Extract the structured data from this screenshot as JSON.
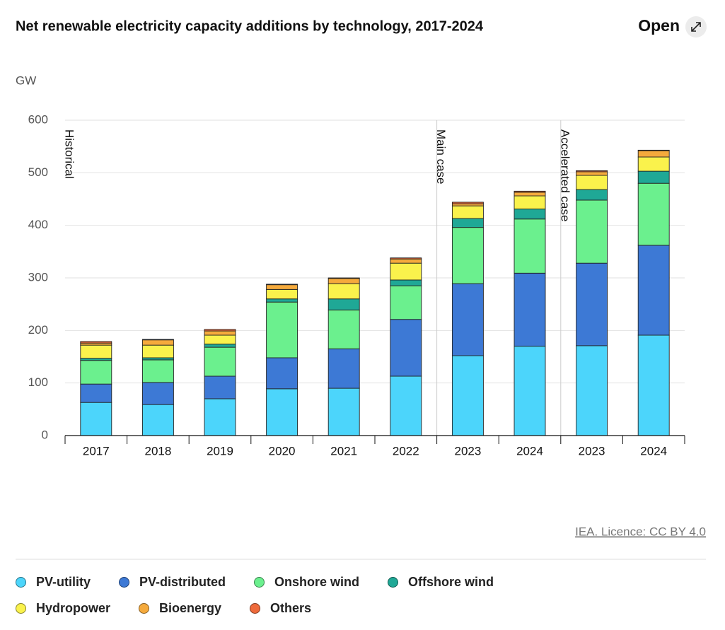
{
  "chart_data": {
    "type": "stacked-bar",
    "title": "Net renewable electricity capacity additions by technology, 2017-2024",
    "y_label": "GW",
    "open_button": "Open",
    "source": "IEA. Licence: CC BY 4.0",
    "annotations": [
      "Historical",
      "Main case",
      "Accelerated case"
    ],
    "categories": [
      "2017",
      "2018",
      "2019",
      "2020",
      "2021",
      "2022",
      "2023",
      "2024",
      "2023",
      "2024"
    ],
    "ylim": [
      0,
      600
    ],
    "yticks": [
      0,
      100,
      200,
      300,
      400,
      500,
      600
    ],
    "grid": true,
    "series": [
      {
        "name": "PV-utility",
        "color": "#4cd5fb",
        "values": [
          63,
          59,
          70,
          89,
          90,
          113,
          152,
          170,
          171,
          191
        ]
      },
      {
        "name": "PV-distributed",
        "color": "#3d79d5",
        "values": [
          35,
          42,
          43,
          59,
          75,
          108,
          137,
          139,
          157,
          171
        ]
      },
      {
        "name": "Onshore wind",
        "color": "#6bf08e",
        "values": [
          45,
          43,
          55,
          106,
          74,
          64,
          107,
          103,
          120,
          118
        ]
      },
      {
        "name": "Offshore wind",
        "color": "#1fa896",
        "values": [
          4,
          4,
          6,
          6,
          21,
          11,
          17,
          19,
          20,
          23
        ]
      },
      {
        "name": "Hydropower",
        "color": "#faf24c",
        "values": [
          25,
          24,
          17,
          18,
          29,
          32,
          24,
          25,
          27,
          27
        ]
      },
      {
        "name": "Bioenergy",
        "color": "#f5aa3c",
        "values": [
          4,
          10,
          8,
          9,
          10,
          8,
          4,
          7,
          7,
          12
        ]
      },
      {
        "name": "Others",
        "color": "#ee6a3b",
        "values": [
          3,
          1,
          3,
          1,
          1,
          2,
          3,
          2,
          2,
          1
        ]
      }
    ]
  }
}
